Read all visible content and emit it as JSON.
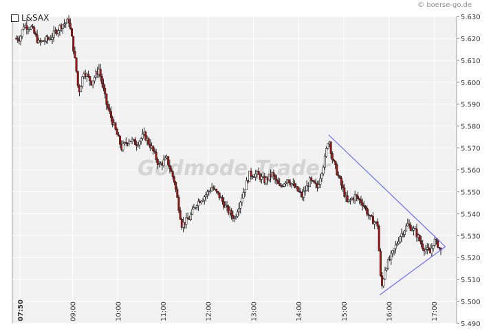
{
  "watermark": "Godmode Trader",
  "copyright": "© boerse-go.de",
  "chart_data": {
    "type": "candlestick",
    "legend": [
      "L&SAX"
    ],
    "ylim": [
      5.49,
      5.63
    ],
    "yticks": [
      "5.630",
      "5.620",
      "5.610",
      "5.600",
      "5.590",
      "5.580",
      "5.570",
      "5.560",
      "5.550",
      "5.540",
      "5.530",
      "5.520",
      "5.510",
      "5.500",
      "5.490"
    ],
    "xlim": [
      "07:40",
      "17:30"
    ],
    "xticks": [
      "07:50",
      "09:00",
      "10:00",
      "11:00",
      "12:00",
      "13:00",
      "14:00",
      "15:00",
      "16:00",
      "17:00"
    ],
    "grid": true,
    "up_color": "#ffffff",
    "down_color": "#b01010",
    "price_path": [
      [
        "07:45",
        5.62
      ],
      [
        "07:50",
        5.62
      ],
      [
        "07:55",
        5.626
      ],
      [
        "08:05",
        5.625
      ],
      [
        "08:15",
        5.618
      ],
      [
        "08:30",
        5.62
      ],
      [
        "08:45",
        5.626
      ],
      [
        "08:55",
        5.628
      ],
      [
        "09:00",
        5.618
      ],
      [
        "09:05",
        5.605
      ],
      [
        "09:08",
        5.595
      ],
      [
        "09:15",
        5.605
      ],
      [
        "09:25",
        5.6
      ],
      [
        "09:35",
        5.606
      ],
      [
        "09:45",
        5.59
      ],
      [
        "09:55",
        5.58
      ],
      [
        "10:05",
        5.57
      ],
      [
        "10:15",
        5.574
      ],
      [
        "10:25",
        5.572
      ],
      [
        "10:35",
        5.576
      ],
      [
        "10:45",
        5.57
      ],
      [
        "10:55",
        5.562
      ],
      [
        "11:05",
        5.565
      ],
      [
        "11:10",
        5.56
      ],
      [
        "11:15",
        5.555
      ],
      [
        "11:20",
        5.545
      ],
      [
        "11:25",
        5.535
      ],
      [
        "11:35",
        5.538
      ],
      [
        "11:45",
        5.545
      ],
      [
        "11:55",
        5.548
      ],
      [
        "12:05",
        5.552
      ],
      [
        "12:15",
        5.548
      ],
      [
        "12:25",
        5.542
      ],
      [
        "12:35",
        5.538
      ],
      [
        "12:45",
        5.548
      ],
      [
        "12:55",
        5.558
      ],
      [
        "13:05",
        5.558
      ],
      [
        "13:15",
        5.555
      ],
      [
        "13:25",
        5.558
      ],
      [
        "13:35",
        5.552
      ],
      [
        "13:45",
        5.556
      ],
      [
        "13:55",
        5.552
      ],
      [
        "14:05",
        5.548
      ],
      [
        "14:15",
        5.555
      ],
      [
        "14:25",
        5.552
      ],
      [
        "14:35",
        5.565
      ],
      [
        "14:40",
        5.575
      ],
      [
        "14:45",
        5.565
      ],
      [
        "14:55",
        5.555
      ],
      [
        "15:05",
        5.545
      ],
      [
        "15:15",
        5.548
      ],
      [
        "15:25",
        5.545
      ],
      [
        "15:35",
        5.538
      ],
      [
        "15:45",
        5.535
      ],
      [
        "15:50",
        5.505
      ],
      [
        "15:55",
        5.515
      ],
      [
        "16:05",
        5.522
      ],
      [
        "16:15",
        5.53
      ],
      [
        "16:25",
        5.535
      ],
      [
        "16:35",
        5.532
      ],
      [
        "16:45",
        5.525
      ],
      [
        "16:55",
        5.522
      ],
      [
        "17:00",
        5.528
      ],
      [
        "17:05",
        5.526
      ],
      [
        "17:10",
        5.522
      ]
    ],
    "trendlines": [
      {
        "from": [
          "14:40",
          5.576
        ],
        "to": [
          "17:15",
          5.525
        ]
      },
      {
        "from": [
          "15:48",
          5.503
        ],
        "to": [
          "17:15",
          5.525
        ]
      }
    ],
    "trendline_color": "#6e6ef0"
  }
}
